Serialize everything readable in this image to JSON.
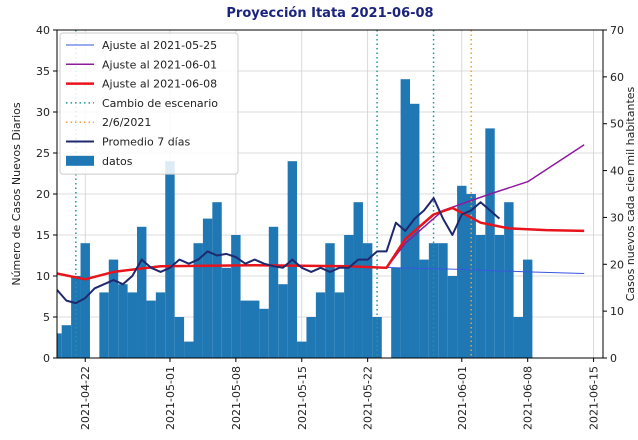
{
  "chart_data": {
    "type": "bar",
    "title": "Proyección Itata 2021-06-08",
    "ylabel": "Número de Casos Nuevos Diarios",
    "y2label": "Casos nuevos cada cien mil habitantes",
    "xlim": [
      "2021-04-19",
      "2021-06-16"
    ],
    "xticks": [
      "2021-04-22",
      "2021-05-01",
      "2021-05-08",
      "2021-05-15",
      "2021-05-22",
      "2021-06-01",
      "2021-06-08",
      "2021-06-15"
    ],
    "ylim": [
      0,
      40
    ],
    "yticks": [
      0,
      5,
      10,
      15,
      20,
      25,
      30,
      35,
      40
    ],
    "y2lim": [
      0,
      70
    ],
    "y2ticks": [
      0,
      10,
      20,
      30,
      40,
      50,
      60,
      70
    ],
    "grid": true,
    "legend": "upper left",
    "series": [
      {
        "name": "Ajuste al 2021-05-25",
        "kind": "line",
        "color": "#3a56e0",
        "width": 1,
        "x": [
          "2021-04-19",
          "2021-04-22",
          "2021-04-25",
          "2021-04-30",
          "2021-05-10",
          "2021-05-20",
          "2021-05-25",
          "2021-06-01",
          "2021-06-08",
          "2021-06-14"
        ],
        "values": [
          10.3,
          9.6,
          10.5,
          11.2,
          11.3,
          11.2,
          11,
          10.8,
          10.5,
          10.3
        ]
      },
      {
        "name": "Ajuste al 2021-06-01",
        "kind": "line",
        "color": "#8e1a9e",
        "width": 1.5,
        "x": [
          "2021-04-19",
          "2021-04-22",
          "2021-04-25",
          "2021-04-30",
          "2021-05-10",
          "2021-05-20",
          "2021-05-24",
          "2021-05-26",
          "2021-05-30",
          "2021-06-04",
          "2021-06-08",
          "2021-06-14"
        ],
        "values": [
          10.3,
          9.6,
          10.5,
          11.2,
          11.3,
          11.2,
          11,
          14,
          18,
          20,
          21.5,
          26
        ]
      },
      {
        "name": "Ajuste al 2021-06-08",
        "kind": "line",
        "color": "#e8141c",
        "width": 2.5,
        "x": [
          "2021-04-19",
          "2021-04-22",
          "2021-04-25",
          "2021-04-30",
          "2021-05-10",
          "2021-05-20",
          "2021-05-24",
          "2021-05-26",
          "2021-05-29",
          "2021-05-31",
          "2021-06-03",
          "2021-06-06",
          "2021-06-10",
          "2021-06-14"
        ],
        "values": [
          10.3,
          9.6,
          10.5,
          11.2,
          11.3,
          11.2,
          11,
          14.5,
          17.5,
          18.3,
          16.5,
          15.8,
          15.6,
          15.5
        ]
      },
      {
        "name": "Cambio de escenario",
        "kind": "vline",
        "color": "#1a9a9a",
        "x": [
          "2021-04-21",
          "2021-05-23",
          "2021-05-29"
        ]
      },
      {
        "name": "2/6/2021",
        "kind": "vline",
        "color": "#f0a030",
        "x": [
          "2021-06-02"
        ]
      },
      {
        "name": "Promedio 7 días",
        "kind": "line",
        "color": "#1f2a6e",
        "width": 2,
        "x": [
          "2021-04-19",
          "2021-04-20",
          "2021-04-21",
          "2021-04-22",
          "2021-04-23",
          "2021-04-24",
          "2021-04-25",
          "2021-04-26",
          "2021-04-27",
          "2021-04-28",
          "2021-04-29",
          "2021-04-30",
          "2021-05-01",
          "2021-05-02",
          "2021-05-03",
          "2021-05-04",
          "2021-05-05",
          "2021-05-06",
          "2021-05-07",
          "2021-05-08",
          "2021-05-09",
          "2021-05-10",
          "2021-05-11",
          "2021-05-12",
          "2021-05-13",
          "2021-05-14",
          "2021-05-15",
          "2021-05-16",
          "2021-05-17",
          "2021-05-18",
          "2021-05-19",
          "2021-05-20",
          "2021-05-21",
          "2021-05-22",
          "2021-05-23",
          "2021-05-24",
          "2021-05-25",
          "2021-05-26",
          "2021-05-27",
          "2021-05-28",
          "2021-05-29",
          "2021-05-30",
          "2021-05-31",
          "2021-06-01",
          "2021-06-02",
          "2021-06-03",
          "2021-06-04",
          "2021-06-05"
        ],
        "values": [
          8.3,
          7,
          6.7,
          7.3,
          8.5,
          9,
          9.5,
          9,
          10,
          12,
          11,
          10.5,
          11,
          12,
          11.5,
          12,
          13,
          12.5,
          12.7,
          12.3,
          11.5,
          12,
          11.5,
          11.2,
          11,
          12,
          11,
          10.5,
          11,
          10.5,
          11,
          11,
          12,
          12,
          13,
          13,
          16.5,
          15.5,
          17,
          18,
          19.5,
          17,
          15,
          17.5,
          18,
          19,
          18,
          17
        ]
      },
      {
        "name": "datos",
        "kind": "bar",
        "color": "#1f77b4",
        "x": [
          "2021-04-19",
          "2021-04-20",
          "2021-04-21",
          "2021-04-22",
          "2021-04-23",
          "2021-04-24",
          "2021-04-25",
          "2021-04-26",
          "2021-04-27",
          "2021-04-28",
          "2021-04-29",
          "2021-04-30",
          "2021-05-01",
          "2021-05-02",
          "2021-05-03",
          "2021-05-04",
          "2021-05-05",
          "2021-05-06",
          "2021-05-07",
          "2021-05-08",
          "2021-05-09",
          "2021-05-10",
          "2021-05-11",
          "2021-05-12",
          "2021-05-13",
          "2021-05-14",
          "2021-05-15",
          "2021-05-16",
          "2021-05-17",
          "2021-05-18",
          "2021-05-19",
          "2021-05-20",
          "2021-05-21",
          "2021-05-22",
          "2021-05-23",
          "2021-05-24",
          "2021-05-25",
          "2021-05-26",
          "2021-05-27",
          "2021-05-28",
          "2021-05-29",
          "2021-05-30",
          "2021-05-31",
          "2021-06-01",
          "2021-06-02",
          "2021-06-03",
          "2021-06-04",
          "2021-06-05",
          "2021-06-06",
          "2021-06-07",
          "2021-06-08"
        ],
        "values": [
          3,
          4,
          10,
          14,
          0,
          8,
          12,
          9,
          8,
          16,
          7,
          8,
          24,
          5,
          2,
          14,
          17,
          19,
          11,
          15,
          7,
          7,
          6,
          16,
          9,
          24,
          2,
          5,
          8,
          14,
          8,
          15,
          19,
          14,
          5,
          0,
          11,
          34,
          31,
          12,
          14,
          14,
          10,
          21,
          20,
          15,
          28,
          15,
          19,
          5,
          12
        ]
      }
    ]
  }
}
